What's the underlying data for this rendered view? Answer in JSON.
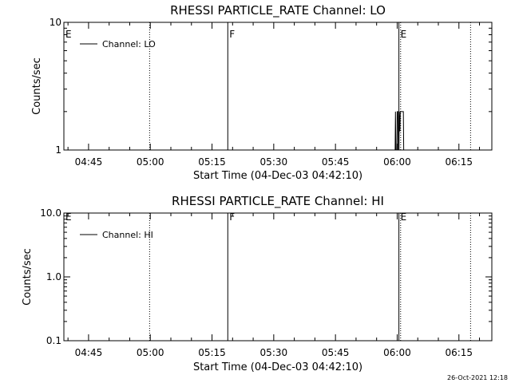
{
  "chart_data": [
    {
      "type": "line",
      "title": "RHESSI PARTICLE_RATE Channel: LO",
      "xlabel": "Start Time (04-Dec-03 04:42:10)",
      "ylabel": "Counts/sec",
      "y_scale": "log",
      "xlim": [
        "04:39:00",
        "06:23:00"
      ],
      "ylim": [
        1,
        10
      ],
      "x_ticks": [
        "04:45",
        "05:00",
        "05:15",
        "05:30",
        "05:45",
        "06:00",
        "06:15"
      ],
      "y_ticks": [
        "1",
        "10"
      ],
      "legend": {
        "position": "top-left",
        "entries": [
          "Channel: LO"
        ]
      },
      "series": [
        {
          "name": "Channel: LO",
          "points": [
            [
              "05:59:30",
              1
            ],
            [
              "05:59:35",
              2
            ],
            [
              "05:59:40",
              1
            ],
            [
              "05:59:55",
              1
            ],
            [
              "06:00:00",
              2
            ],
            [
              "06:00:10",
              2
            ],
            [
              "06:00:15",
              1
            ],
            [
              "06:00:25",
              1
            ],
            [
              "06:00:30",
              2
            ],
            [
              "06:00:40",
              1.4
            ],
            [
              "06:00:45",
              2
            ],
            [
              "06:01:30",
              2
            ],
            [
              "06:01:35",
              1
            ]
          ]
        }
      ],
      "markers": [
        {
          "time": "04:39:00",
          "label": "E",
          "style": "none"
        },
        {
          "time": "04:59:50",
          "label": "",
          "style": "dotted"
        },
        {
          "time": "05:18:50",
          "label": "F",
          "style": "solid"
        },
        {
          "time": "06:00:25",
          "label": "E",
          "style": "solid"
        },
        {
          "time": "06:00:50",
          "label": "",
          "style": "dotted"
        },
        {
          "time": "06:17:50",
          "label": "",
          "style": "dotted"
        }
      ]
    },
    {
      "type": "line",
      "title": "RHESSI PARTICLE_RATE Channel: HI",
      "xlabel": "Start Time (04-Dec-03 04:42:10)",
      "ylabel": "Counts/sec",
      "y_scale": "log",
      "xlim": [
        "04:39:00",
        "06:23:00"
      ],
      "ylim": [
        0.1,
        10
      ],
      "x_ticks": [
        "04:45",
        "05:00",
        "05:15",
        "05:30",
        "05:45",
        "06:00",
        "06:15"
      ],
      "y_ticks": [
        "0.1",
        "1.0",
        "10.0"
      ],
      "legend": {
        "position": "top-left",
        "entries": [
          "Channel: HI"
        ]
      },
      "series": [
        {
          "name": "Channel: HI",
          "points": []
        }
      ],
      "markers": [
        {
          "time": "04:39:00",
          "label": "E",
          "style": "none"
        },
        {
          "time": "04:59:50",
          "label": "",
          "style": "dotted"
        },
        {
          "time": "05:18:50",
          "label": "F",
          "style": "solid"
        },
        {
          "time": "06:00:25",
          "label": "E",
          "style": "solid"
        },
        {
          "time": "06:00:50",
          "label": "",
          "style": "dotted"
        },
        {
          "time": "06:17:50",
          "label": "",
          "style": "dotted"
        }
      ]
    }
  ],
  "timestamp": "26-Oct-2021 12:18"
}
